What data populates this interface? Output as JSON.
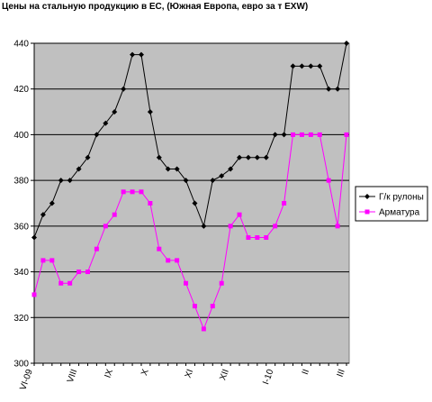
{
  "chart_data": {
    "type": "line",
    "title": "Цены на стальную продукцию в ЕС, (Южная Европа, евро за т EXW)",
    "categories": [
      "VI-09",
      null,
      null,
      null,
      null,
      "VIII",
      null,
      null,
      null,
      "IX",
      null,
      null,
      null,
      "X",
      null,
      null,
      null,
      null,
      "XI",
      null,
      null,
      null,
      "XII",
      null,
      null,
      null,
      null,
      "I-10",
      null,
      null,
      null,
      "II",
      null,
      null,
      null,
      "III"
    ],
    "series": [
      {
        "name": "Г/к рулоны",
        "color": "#000000",
        "marker": "diamond",
        "values": [
          355,
          365,
          370,
          380,
          380,
          385,
          390,
          400,
          405,
          410,
          420,
          435,
          435,
          410,
          390,
          385,
          385,
          380,
          370,
          360,
          380,
          382,
          385,
          390,
          390,
          390,
          390,
          400,
          400,
          430,
          430,
          430,
          430,
          420,
          420,
          440
        ]
      },
      {
        "name": "Арматура",
        "color": "#ff00ff",
        "marker": "square",
        "values": [
          330,
          345,
          345,
          335,
          335,
          340,
          340,
          350,
          360,
          365,
          375,
          375,
          375,
          370,
          350,
          345,
          345,
          335,
          325,
          315,
          325,
          335,
          360,
          365,
          355,
          355,
          355,
          360,
          370,
          400,
          400,
          400,
          400,
          380,
          360,
          400
        ]
      }
    ],
    "ylim": [
      300,
      440
    ],
    "yticks": [
      300,
      320,
      340,
      360,
      380,
      400,
      420,
      440
    ],
    "grid": true,
    "legend": "right",
    "plot_background": "#c0c0c0"
  }
}
